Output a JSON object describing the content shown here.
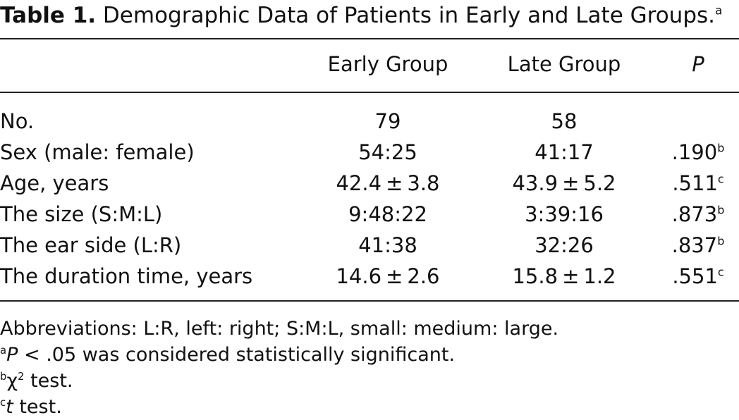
{
  "caption": {
    "label": "Table 1.",
    "text": "Demographic Data of Patients in Early and Late Groups.",
    "footnote_mark": "a"
  },
  "columns": {
    "early": "Early Group",
    "late": "Late Group",
    "p": "P"
  },
  "rows": [
    {
      "label": "No.",
      "early": "79",
      "late": "58",
      "p": "",
      "p_mark": ""
    },
    {
      "label": "Sex (male: female)",
      "early": "54:25",
      "late": "41:17",
      "p": ".190",
      "p_mark": "b"
    },
    {
      "label": "Age, years",
      "early_mean": "42.4",
      "early_sd": "3.8",
      "late_mean": "43.9",
      "late_sd": "5.2",
      "pm": "±",
      "p": ".511",
      "p_mark": "c"
    },
    {
      "label": "The size (S:M:L)",
      "early": "9:48:22",
      "late": "3:39:16",
      "p": ".873",
      "p_mark": "b"
    },
    {
      "label": "The ear side (L:R)",
      "early": "41:38",
      "late": "32:26",
      "p": ".837",
      "p_mark": "b"
    },
    {
      "label": "The duration time, years",
      "early_mean": "14.6",
      "early_sd": "2.6",
      "late_mean": "15.8",
      "late_sd": "1.2",
      "pm": "±",
      "p": ".551",
      "p_mark": "c"
    }
  ],
  "notes": {
    "abbreviations": "Abbreviations: L:R, left: right; S:M:L, small: medium: large.",
    "a_mark": "a",
    "a_p": "P",
    "a_text": " < .05 was considered statistically significant.",
    "b_mark": "b",
    "b_symbol": "χ",
    "b_power": "2",
    "b_text": " test.",
    "c_mark": "c",
    "c_symbol": "t",
    "c_text": " test."
  }
}
